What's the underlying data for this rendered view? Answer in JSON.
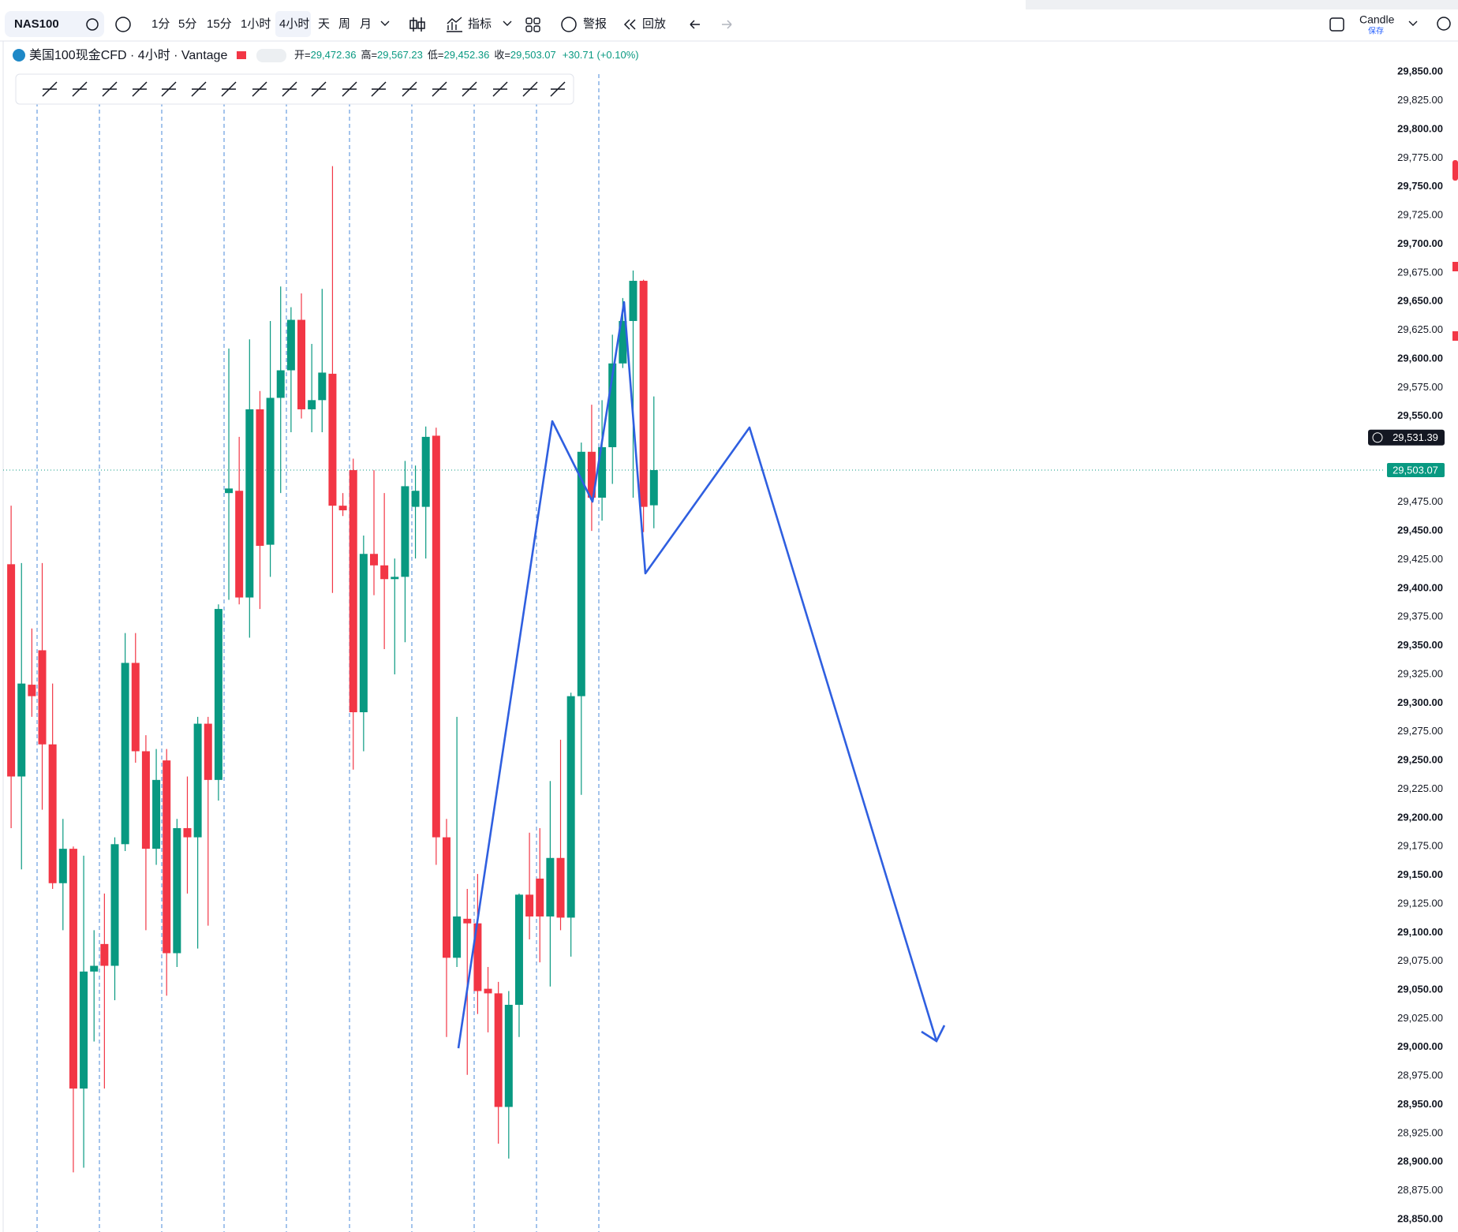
{
  "toolbar": {
    "symbol": "NAS100",
    "intervals": [
      "1分",
      "5分",
      "15分",
      "1小时",
      "4小时",
      "天",
      "周",
      "月"
    ],
    "indicators": "指标",
    "alerts": "警报",
    "replay": "回放",
    "layout": "Candle",
    "save": "保存"
  },
  "legend": {
    "title": "美国100现金CFD · 4小时 · Vantage",
    "items": [
      {
        "label": "开=",
        "value": "29,472.36"
      },
      {
        "label": "高=",
        "value": "29,567.23"
      },
      {
        "label": "低=",
        "value": "29,452.36"
      },
      {
        "label": "收=",
        "value": "29,503.07"
      }
    ],
    "change": "+30.71 (+0.10%)"
  },
  "chart_data": {
    "type": "candlestick",
    "up_color": "#089981",
    "down_color": "#f23645",
    "grid": false,
    "ylim": [
      28839,
      29877
    ],
    "yticks": [
      {
        "value": 28850,
        "label": "28,850.00"
      },
      {
        "value": 28875,
        "label": "28,875.00"
      },
      {
        "value": 28900,
        "label": "28,900.00"
      },
      {
        "value": 28925,
        "label": "28,925.00"
      },
      {
        "value": 28950,
        "label": "28,950.00"
      },
      {
        "value": 28975,
        "label": "28,975.00"
      },
      {
        "value": 29000,
        "label": "29,000.00"
      },
      {
        "value": 29025,
        "label": "29,025.00"
      },
      {
        "value": 29050,
        "label": "29,050.00"
      },
      {
        "value": 29075,
        "label": "29,075.00"
      },
      {
        "value": 29100,
        "label": "29,100.00"
      },
      {
        "value": 29125,
        "label": "29,125.00"
      },
      {
        "value": 29150,
        "label": "29,150.00"
      },
      {
        "value": 29175,
        "label": "29,175.00"
      },
      {
        "value": 29200,
        "label": "29,200.00"
      },
      {
        "value": 29225,
        "label": "29,225.00"
      },
      {
        "value": 29250,
        "label": "29,250.00"
      },
      {
        "value": 29275,
        "label": "29,275.00"
      },
      {
        "value": 29300,
        "label": "29,300.00"
      },
      {
        "value": 29325,
        "label": "29,325.00"
      },
      {
        "value": 29350,
        "label": "29,350.00"
      },
      {
        "value": 29375,
        "label": "29,375.00"
      },
      {
        "value": 29400,
        "label": "29,400.00"
      },
      {
        "value": 29425,
        "label": "29,425.00"
      },
      {
        "value": 29450,
        "label": "29,450.00"
      },
      {
        "value": 29475,
        "label": "29,475.00"
      },
      {
        "value": 29550,
        "label": "29,550.00"
      },
      {
        "value": 29575,
        "label": "29,575.00"
      },
      {
        "value": 29600,
        "label": "29,600.00"
      },
      {
        "value": 29625,
        "label": "29,625.00"
      },
      {
        "value": 29650,
        "label": "29,650.00"
      },
      {
        "value": 29675,
        "label": "29,675.00"
      },
      {
        "value": 29700,
        "label": "29,700.00"
      },
      {
        "value": 29725,
        "label": "29,725.00"
      },
      {
        "value": 29750,
        "label": "29,750.00"
      },
      {
        "value": 29775,
        "label": "29,775.00"
      },
      {
        "value": 29800,
        "label": "29,800.00"
      },
      {
        "value": 29825,
        "label": "29,825.00"
      },
      {
        "value": 29850,
        "label": "29,850.00"
      }
    ],
    "last_price": {
      "value": 29503.07,
      "label": "29,503.07"
    },
    "crosshair_price": {
      "value": 29531.39,
      "label": "29,531.39"
    },
    "open": [
      29421,
      29236,
      29316,
      29346,
      29264,
      29143,
      29173,
      28964,
      29066,
      29090,
      29071,
      29177,
      29335,
      29258,
      29173,
      29250,
      29082,
      29191,
      29183,
      29282,
      29233,
      29483,
      29485,
      29392,
      29556,
      29438,
      29566,
      29590,
      29634,
      29556,
      29564,
      29587,
      29472,
      29503,
      29292,
      29430,
      29420,
      29408,
      29410,
      29471,
      29471,
      29533,
      29183,
      29078,
      29112,
      29108,
      29051,
      29047,
      28948,
      29037,
      29133,
      29147,
      29114,
      29165,
      29113,
      29306,
      29519,
      29479,
      29523,
      29596,
      29633,
      29668,
      29472.36
    ],
    "high": [
      29472,
      29422,
      29365,
      29422,
      29317,
      29199,
      29175,
      29167,
      29102,
      29134,
      29183,
      29361,
      29361,
      29272,
      29260,
      29260,
      29199,
      29236,
      29288,
      29288,
      29386,
      29609,
      29532,
      29617,
      29572,
      29633,
      29663,
      29645,
      29657,
      29613,
      29661,
      29768,
      29483,
      29513,
      29446,
      29503,
      29483,
      29426,
      29511,
      29507,
      29541,
      29540,
      29199,
      29288,
      29138,
      29151,
      29070,
      29057,
      29049,
      29134,
      29187,
      29191,
      29232,
      29268,
      29309,
      29527,
      29560,
      29564,
      29621,
      29653,
      29677,
      29669,
      29567.23
    ],
    "low": [
      29191,
      29155,
      29288,
      29207,
      29138,
      29102,
      28891,
      28895,
      29005,
      28964,
      29041,
      29171,
      29248,
      29102,
      29159,
      29045,
      29070,
      29134,
      29086,
      29106,
      29215,
      29390,
      29386,
      29357,
      29382,
      29410,
      29483,
      29536,
      29548,
      29536,
      29536,
      29396,
      29463,
      29242,
      29258,
      29394,
      29347,
      29325,
      29353,
      29426,
      29426,
      29159,
      29009,
      29070,
      28976,
      29029,
      29013,
      28916,
      28903,
      29009,
      29094,
      29074,
      29053,
      29102,
      29079,
      29220,
      29450,
      29459,
      29491,
      29592,
      29479,
      29449,
      29452.36
    ],
    "close": [
      29236,
      29317,
      29306,
      29264,
      29143,
      29173,
      28964,
      29066,
      29071,
      29071,
      29177,
      29335,
      29258,
      29173,
      29233,
      29082,
      29191,
      29183,
      29282,
      29233,
      29382,
      29487,
      29392,
      29556,
      29437,
      29566,
      29590,
      29634,
      29556,
      29564,
      29588,
      29472,
      29468,
      29292,
      29430,
      29420,
      29408,
      29410,
      29489,
      29485,
      29532,
      29183,
      29078,
      29114,
      29108,
      29049,
      29047,
      28948,
      29037,
      29133,
      29114,
      29114,
      29165,
      29113,
      29306,
      29519,
      29479,
      29523,
      29596,
      29633,
      29668,
      29471,
      29503.07
    ]
  }
}
